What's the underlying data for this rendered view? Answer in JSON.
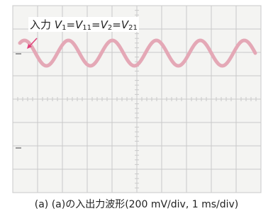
{
  "annotation": {
    "prefix": "入力",
    "separator": "=",
    "terms": [
      {
        "var": "V",
        "sub": "1"
      },
      {
        "var": "V",
        "sub": "11"
      },
      {
        "var": "V",
        "sub": "2"
      },
      {
        "var": "V",
        "sub": "21"
      }
    ]
  },
  "caption": "(a) (a)の入出力波形(200 mV/div, 1 ms/div)"
}
